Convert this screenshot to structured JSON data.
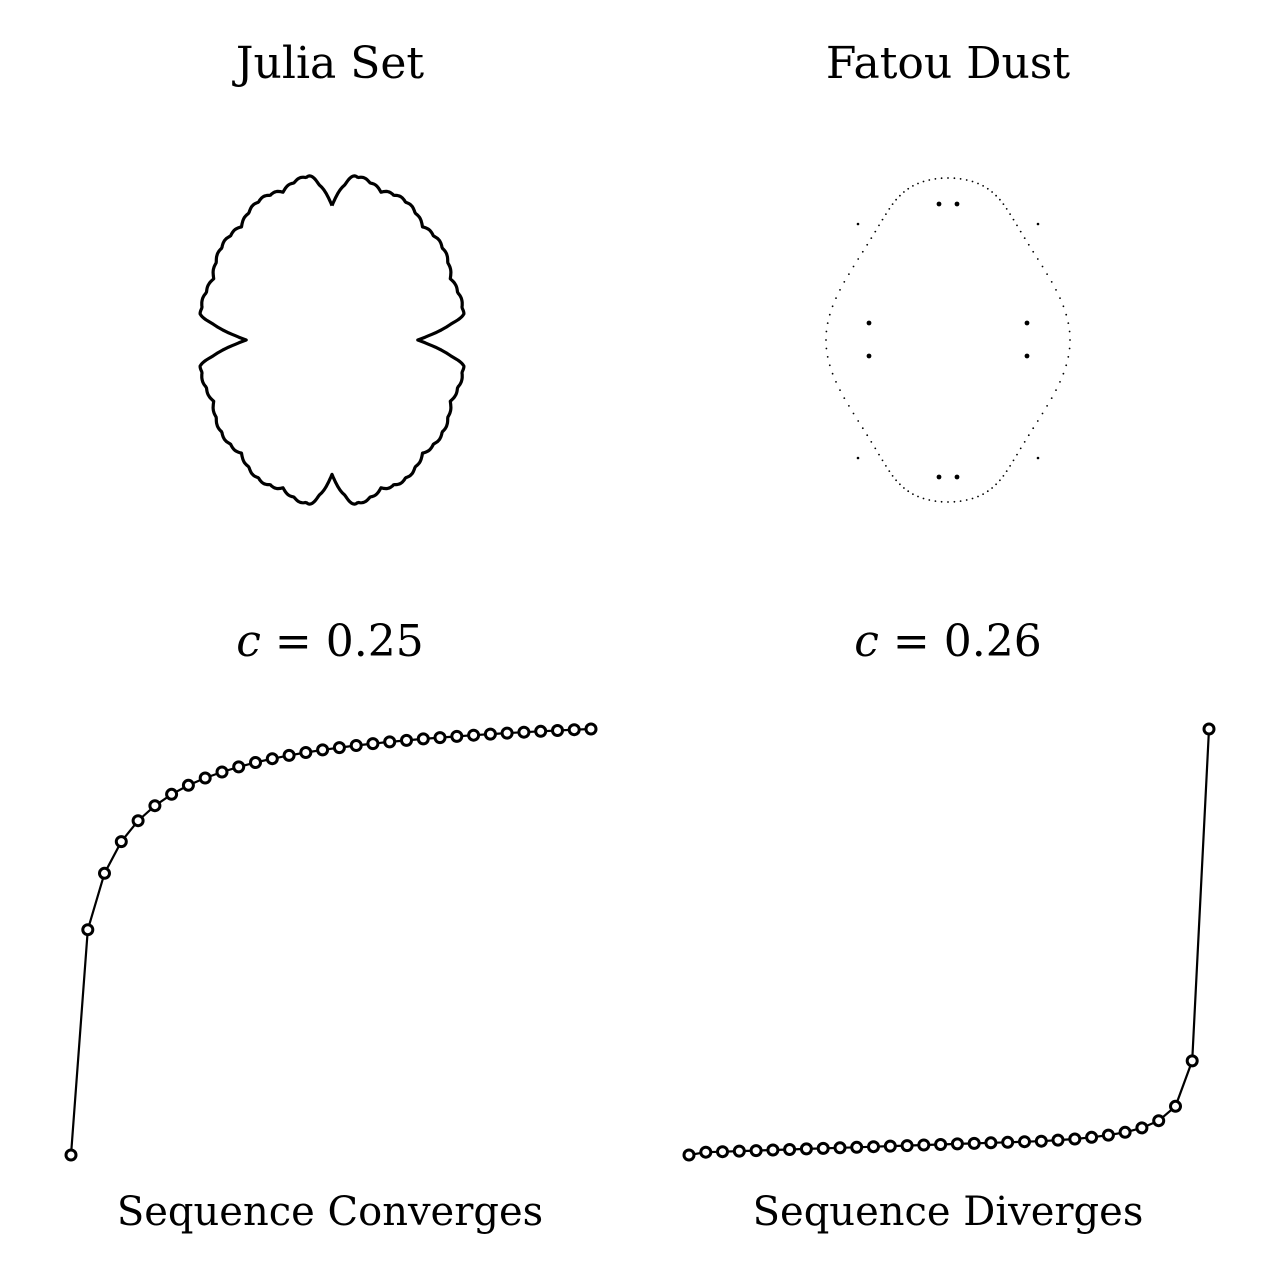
{
  "panels": {
    "julia": {
      "title": "Julia Set",
      "param_var": "c",
      "param_eq": " = ",
      "param_value": "0.25",
      "caption": "Sequence Converges"
    },
    "fatou": {
      "title": "Fatou Dust",
      "param_var": "c",
      "param_eq": " = ",
      "param_value": "0.26",
      "caption": "Sequence Diverges"
    }
  },
  "chart_data": [
    {
      "type": "line",
      "title": "",
      "markers": "open-circle",
      "x": [
        0,
        1,
        2,
        3,
        4,
        5,
        6,
        7,
        8,
        9,
        10,
        11,
        12,
        13,
        14,
        15,
        16,
        17,
        18,
        19,
        20,
        21,
        22,
        23,
        24,
        25,
        26,
        27,
        28,
        29,
        30,
        31
      ],
      "y": [
        0.0,
        0.25,
        0.3125,
        0.3477,
        0.3709,
        0.3875,
        0.4002,
        0.4101,
        0.4182,
        0.4249,
        0.4306,
        0.4354,
        0.4396,
        0.4433,
        0.4465,
        0.4494,
        0.452,
        0.4543,
        0.4564,
        0.4583,
        0.46,
        0.4616,
        0.4631,
        0.4644,
        0.4657,
        0.4669,
        0.468,
        0.469,
        0.47,
        0.4709,
        0.4718,
        0.4726
      ],
      "ylim": [
        0.0,
        0.4726
      ]
    },
    {
      "type": "line",
      "title": "",
      "markers": "open-circle",
      "x": [
        0,
        1,
        2,
        3,
        4,
        5,
        6,
        7,
        8,
        9,
        10,
        11,
        12,
        13,
        14,
        15,
        16,
        17,
        18,
        19,
        20,
        21,
        22,
        23,
        24,
        25,
        26,
        27,
        28,
        29,
        30,
        31
      ],
      "y": [
        0.0,
        0.05,
        0.06,
        0.07,
        0.08,
        0.09,
        0.1,
        0.11,
        0.12,
        0.13,
        0.14,
        0.15,
        0.16,
        0.17,
        0.18,
        0.19,
        0.2,
        0.21,
        0.22,
        0.23,
        0.24,
        0.25,
        0.27,
        0.29,
        0.32,
        0.36,
        0.41,
        0.49,
        0.62,
        0.88,
        1.7,
        7.7
      ],
      "ylim": [
        0.0,
        7.7
      ]
    }
  ]
}
